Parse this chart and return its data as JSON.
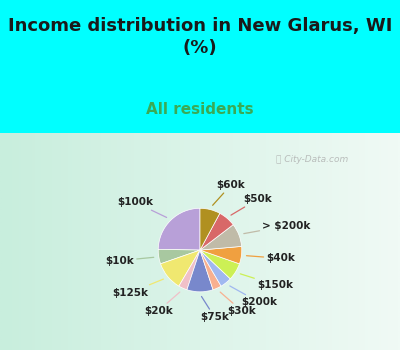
{
  "title": "Income distribution in New Glarus, WI\n(%)",
  "subtitle": "All residents",
  "title_color": "#1a1a1a",
  "subtitle_color": "#3aaa55",
  "background_top": "#00ffff",
  "background_chart_left": "#c8eedd",
  "background_chart_right": "#e8f8f0",
  "watermark": "City-Data.com",
  "labels": [
    "$100k",
    "$10k",
    "$125k",
    "$20k",
    "$75k",
    "$30k",
    "$200k",
    "$150k",
    "$40k",
    "> $200k",
    "$50k",
    "$60k"
  ],
  "values": [
    22,
    5,
    10,
    3,
    9,
    3,
    4,
    6,
    6,
    8,
    6,
    7
  ],
  "colors": [
    "#b8a0d8",
    "#a8c8a0",
    "#f0e870",
    "#f0c0c8",
    "#7888cc",
    "#f8b090",
    "#a0b8f0",
    "#ccf055",
    "#f0a040",
    "#c0bba8",
    "#d86868",
    "#b09020"
  ],
  "startangle": 90,
  "title_fontsize": 13,
  "subtitle_fontsize": 11,
  "label_fontsize": 7.5,
  "title_split": 0.62
}
